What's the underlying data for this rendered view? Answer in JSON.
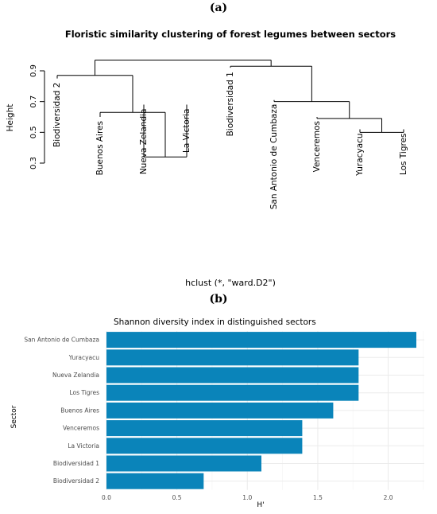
{
  "panel_labels": {
    "a": "(a)",
    "b": "(b)"
  },
  "colors": {
    "bar": "#0a84ba",
    "line": "#000000",
    "grid": "#ebebeb",
    "text": "#4d4d4d"
  },
  "chart_data": [
    {
      "type": "dendrogram",
      "title": "Floristic similarity clustering of forest legumes between sectors",
      "ylabel": "Height",
      "xlabel": "hclust (*, \"ward.D2\")",
      "yticks": [
        0.3,
        0.5,
        0.7,
        0.9
      ],
      "ylim": [
        0.28,
        1.0
      ],
      "leaves": [
        "Biodiversidad 2",
        "Buenos Aires",
        "Nueva Zelandia",
        "La Victoria",
        "Biodiversidad 1",
        "San Antonio de Cumbaza",
        "Venceremos",
        "Yuracyacu",
        "Los Tigres"
      ],
      "leaf_heights": [
        0.85,
        0.6,
        0.68,
        0.68,
        0.92,
        0.71,
        0.6,
        0.52,
        0.52
      ],
      "merges": [
        {
          "a": "L2",
          "b": "L3",
          "height": 0.34
        },
        {
          "a": "L7",
          "b": "L8",
          "height": 0.5
        },
        {
          "a": "L6",
          "b": "C1",
          "height": 0.59
        },
        {
          "a": "L1",
          "b": "C0",
          "height": 0.63
        },
        {
          "a": "L5",
          "b": "C2",
          "height": 0.7
        },
        {
          "a": "L0",
          "b": "C3",
          "height": 0.87
        },
        {
          "a": "L4",
          "b": "C4",
          "height": 0.93
        },
        {
          "a": "C5",
          "b": "C6",
          "height": 0.97
        }
      ]
    },
    {
      "type": "bar",
      "orientation": "horizontal",
      "title": "Shannon diversity index in distinguished sectors",
      "xlabel": "H'",
      "ylabel": "Sector",
      "categories": [
        "San Antonio de Cumbaza",
        "Yuracyacu",
        "Nueva Zelandia",
        "Los Tigres",
        "Buenos Aires",
        "Venceremos",
        "La Victoria",
        "Biodiversidad 1",
        "Biodiversidad 2"
      ],
      "values": [
        2.2,
        1.79,
        1.79,
        1.79,
        1.61,
        1.39,
        1.39,
        1.1,
        0.69
      ],
      "xticks": [
        "0.0",
        "0.5",
        "1.0",
        "1.5",
        "2.0"
      ],
      "xlim": [
        0,
        2.3
      ],
      "grid": true
    }
  ]
}
